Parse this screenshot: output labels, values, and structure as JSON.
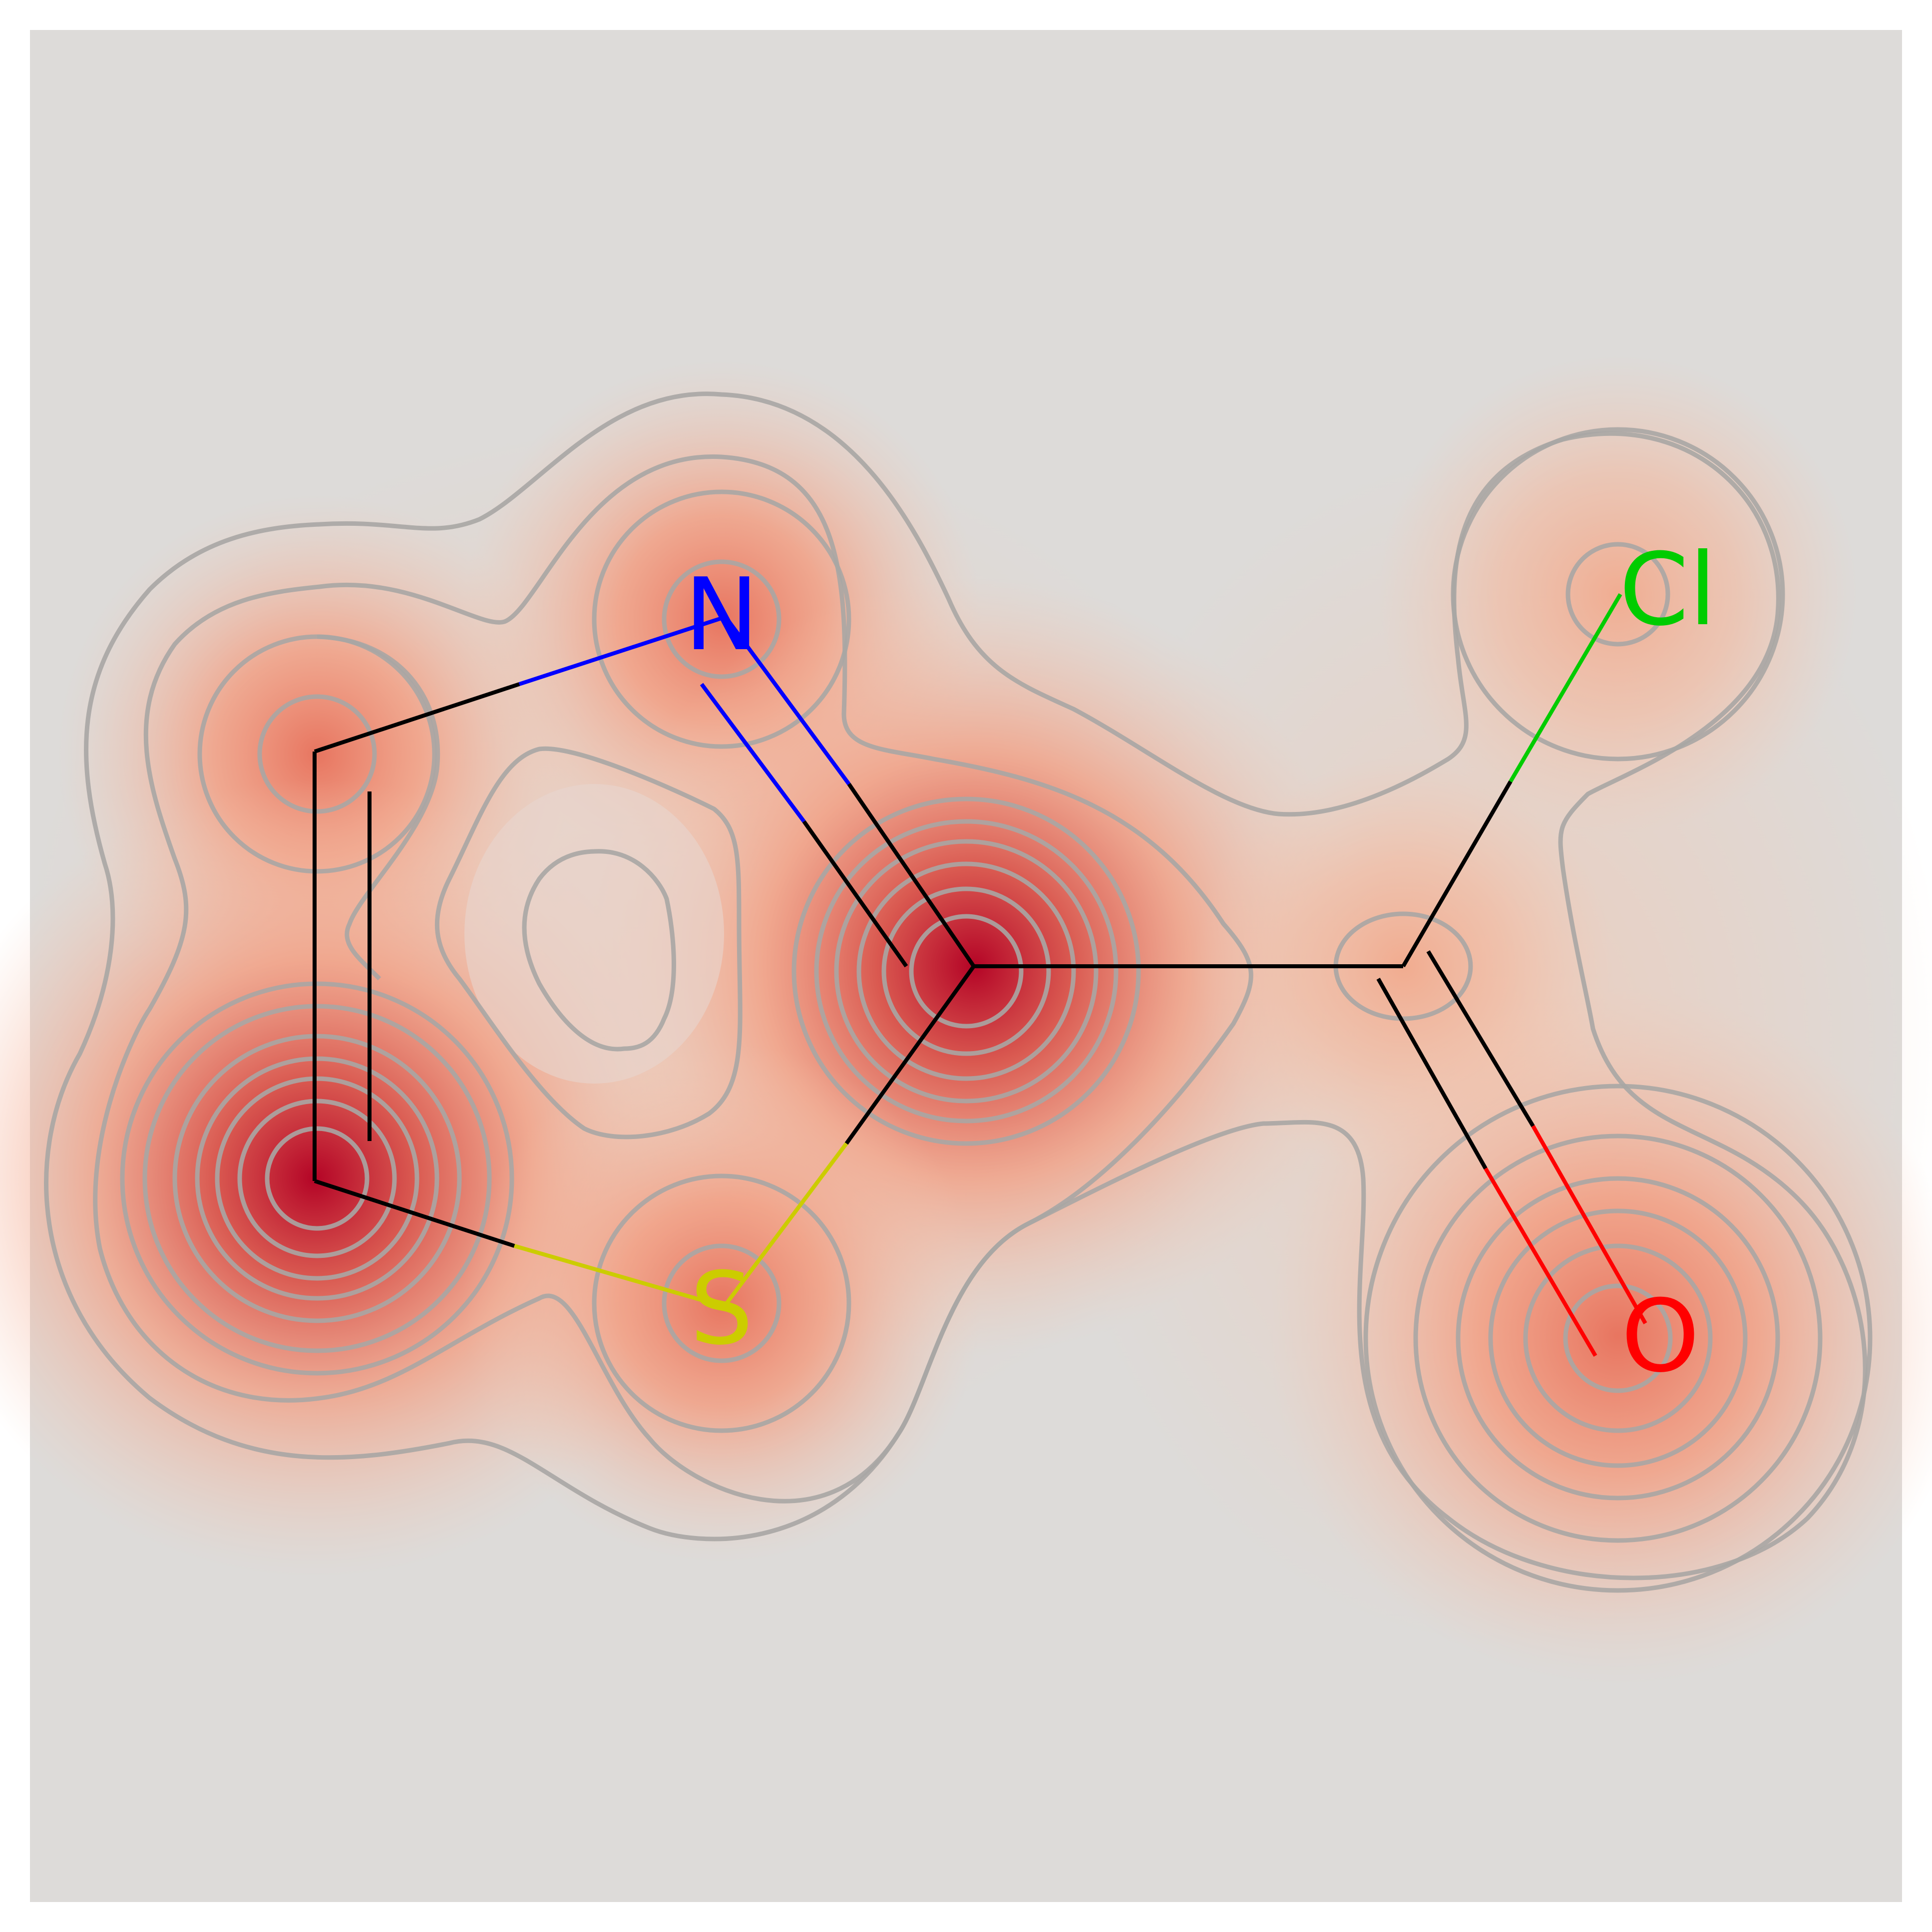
{
  "background_color": "#dddbd9",
  "colors": {
    "carbon_bond": "#000000",
    "nitrogen": "#0000ff",
    "sulfur": "#cccc00",
    "oxygen": "#ff0000",
    "chlorine": "#00cc00",
    "heat_strong": "#b40426",
    "heat_mid": "#f4987a",
    "contour": "#a9a6a4"
  },
  "atoms": {
    "n": {
      "symbol": "N"
    },
    "s": {
      "symbol": "S"
    },
    "o": {
      "symbol": "O"
    },
    "cl": {
      "symbol": "Cl"
    }
  }
}
